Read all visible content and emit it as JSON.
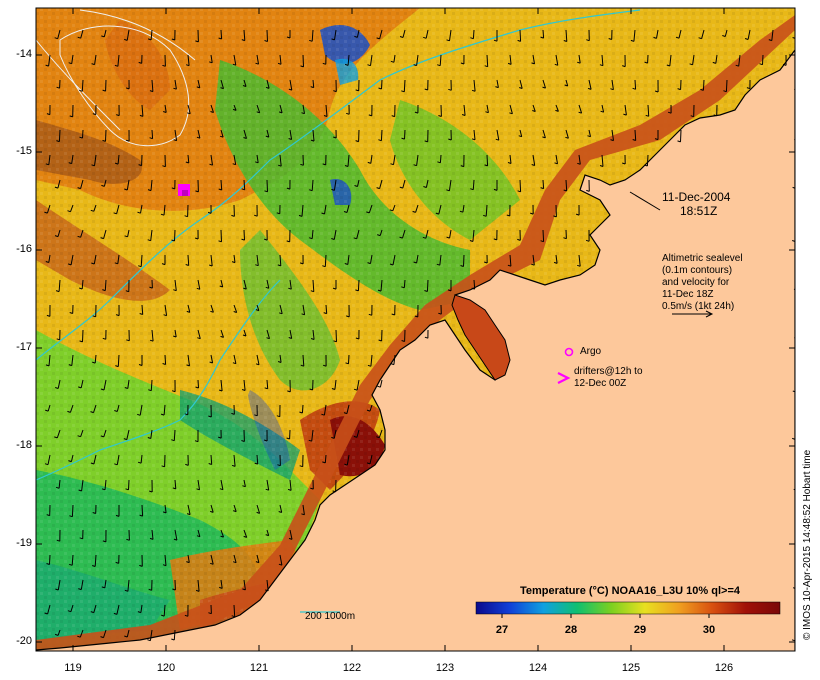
{
  "map": {
    "timestamp_date": "11-Dec-2004",
    "timestamp_time": "18:51Z",
    "altimetry_note": [
      "Altimetric sealevel",
      "(0.1m contours)",
      "and velocity for",
      "11-Dec 18Z",
      "0.5m/s (1kt 24h)"
    ],
    "argo_label": "Argo",
    "drifters_label": [
      "drifters@12h to",
      "12-Dec 00Z"
    ],
    "depth_legend": "200  1000m",
    "colorbar_title": "Temperature (°C) NOAA16_L3U 10% ql>=4",
    "colorbar_ticks": [
      "27",
      "28",
      "29",
      "30"
    ],
    "credit": "© IMOS 10-Apr-2015 14:48:52 Hobart time",
    "y_ticks": [
      "-14",
      "-15",
      "-16",
      "-17",
      "-18",
      "-19",
      "-20"
    ],
    "x_ticks": [
      "119",
      "120",
      "121",
      "122",
      "123",
      "124",
      "125",
      "126"
    ],
    "colors": {
      "land": "#fdc89b",
      "argo": "#ff00ff",
      "isobath": "#30c8d0",
      "sst_cool": "#16a84a",
      "sst_warm": "#e07a10",
      "sst_hot": "#8a1008"
    },
    "colorbar_colors": [
      "#0a0a8c",
      "#1040d8",
      "#10a0e0",
      "#10c070",
      "#7cd020",
      "#e8e020",
      "#f0a020",
      "#d85010",
      "#a01008",
      "#7a0808"
    ]
  }
}
